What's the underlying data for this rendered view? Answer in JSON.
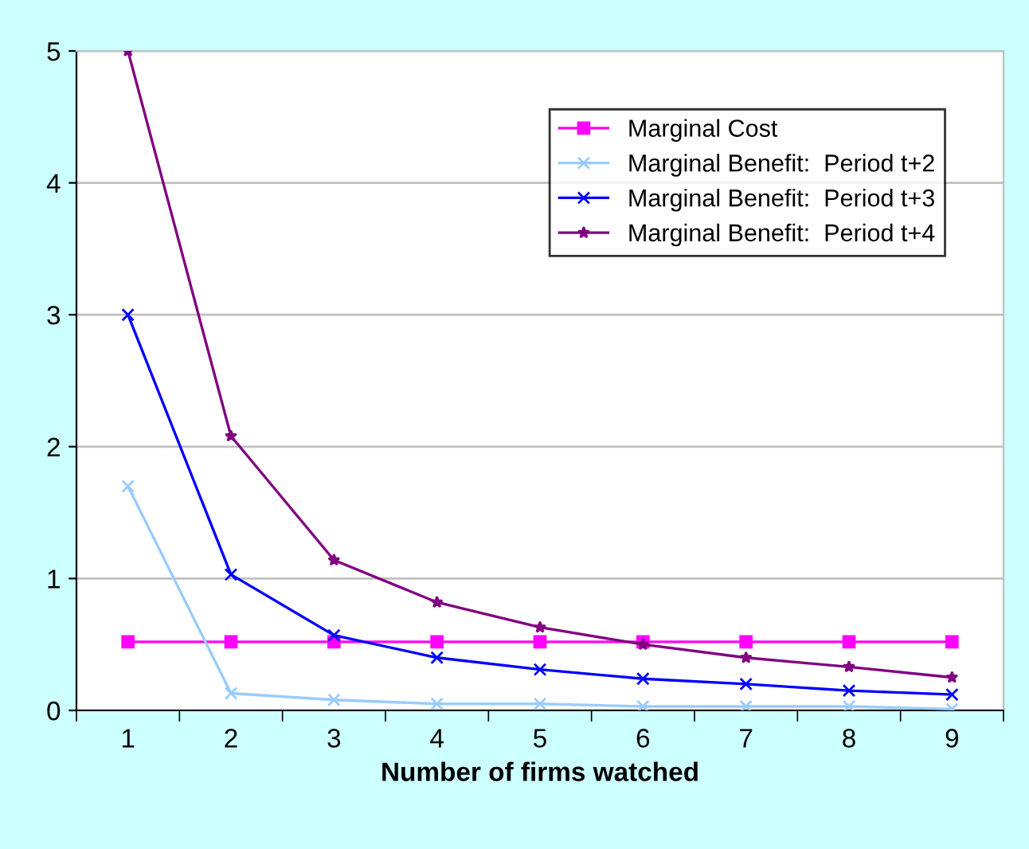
{
  "chart_data": {
    "type": "line",
    "xlabel": "Number of firms watched",
    "categories": [
      "1",
      "2",
      "3",
      "4",
      "5",
      "6",
      "7",
      "8",
      "9"
    ],
    "ylim": [
      0,
      5
    ],
    "yticks": [
      0,
      1,
      2,
      3,
      4,
      5
    ],
    "grid": "y",
    "legend": "top right",
    "series": [
      {
        "name": "Marginal Cost",
        "color": "#ff00ff",
        "marker": "square",
        "values": [
          0.52,
          0.52,
          0.52,
          0.52,
          0.52,
          0.52,
          0.52,
          0.52,
          0.52
        ]
      },
      {
        "name": "Marginal Benefit:  Period t+2",
        "color": "#99ccff",
        "marker": "cross",
        "values": [
          1.7,
          0.13,
          0.08,
          0.05,
          0.05,
          0.03,
          0.03,
          0.03,
          0.01
        ]
      },
      {
        "name": "Marginal Benefit:  Period t+3",
        "color": "#0000ff",
        "marker": "cross",
        "values": [
          3.0,
          1.03,
          0.57,
          0.4,
          0.31,
          0.24,
          0.2,
          0.15,
          0.12
        ]
      },
      {
        "name": "Marginal Benefit:  Period t+4",
        "color": "#800080",
        "marker": "star",
        "values": [
          5.0,
          2.08,
          1.14,
          0.82,
          0.63,
          0.5,
          0.4,
          0.33,
          0.25
        ]
      }
    ]
  }
}
